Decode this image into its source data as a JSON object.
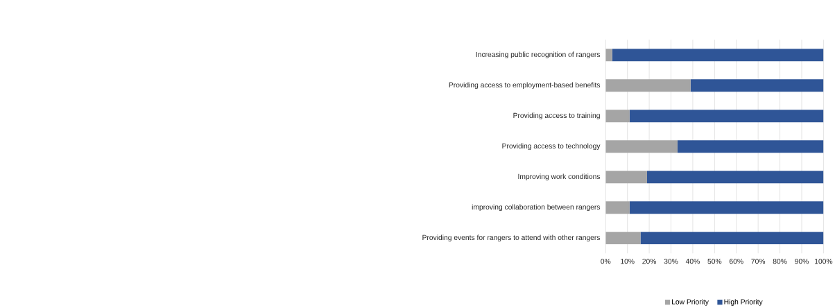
{
  "chart_data": {
    "type": "bar",
    "orientation": "horizontal",
    "stacked": true,
    "categories": [
      "Increasing public recognition of rangers",
      "Providing access to employment-based benefits",
      "Providing access to training",
      "Providing access to technology",
      "Improving work conditions",
      "improving collaboration between rangers",
      "Providing events for rangers to attend with other rangers"
    ],
    "series": [
      {
        "name": "Low Priority",
        "color": "#a5a5a5",
        "values": [
          3,
          39,
          11,
          33,
          19,
          11,
          16
        ]
      },
      {
        "name": "High Priority",
        "color": "#2f5597",
        "values": [
          97,
          61,
          89,
          67,
          81,
          89,
          84
        ]
      }
    ],
    "xlim": [
      0,
      100
    ],
    "xticks": [
      {
        "value": 0,
        "label": "0%"
      },
      {
        "value": 10,
        "label": "10%"
      },
      {
        "value": 20,
        "label": "20%"
      },
      {
        "value": 30,
        "label": "30%"
      },
      {
        "value": 40,
        "label": "40%"
      },
      {
        "value": 50,
        "label": "50%"
      },
      {
        "value": 60,
        "label": "60%"
      },
      {
        "value": 70,
        "label": "70%"
      },
      {
        "value": 80,
        "label": "80%"
      },
      {
        "value": 90,
        "label": "90%"
      },
      {
        "value": 100,
        "label": "100%"
      }
    ],
    "grid": "x",
    "legend": "bottom"
  }
}
